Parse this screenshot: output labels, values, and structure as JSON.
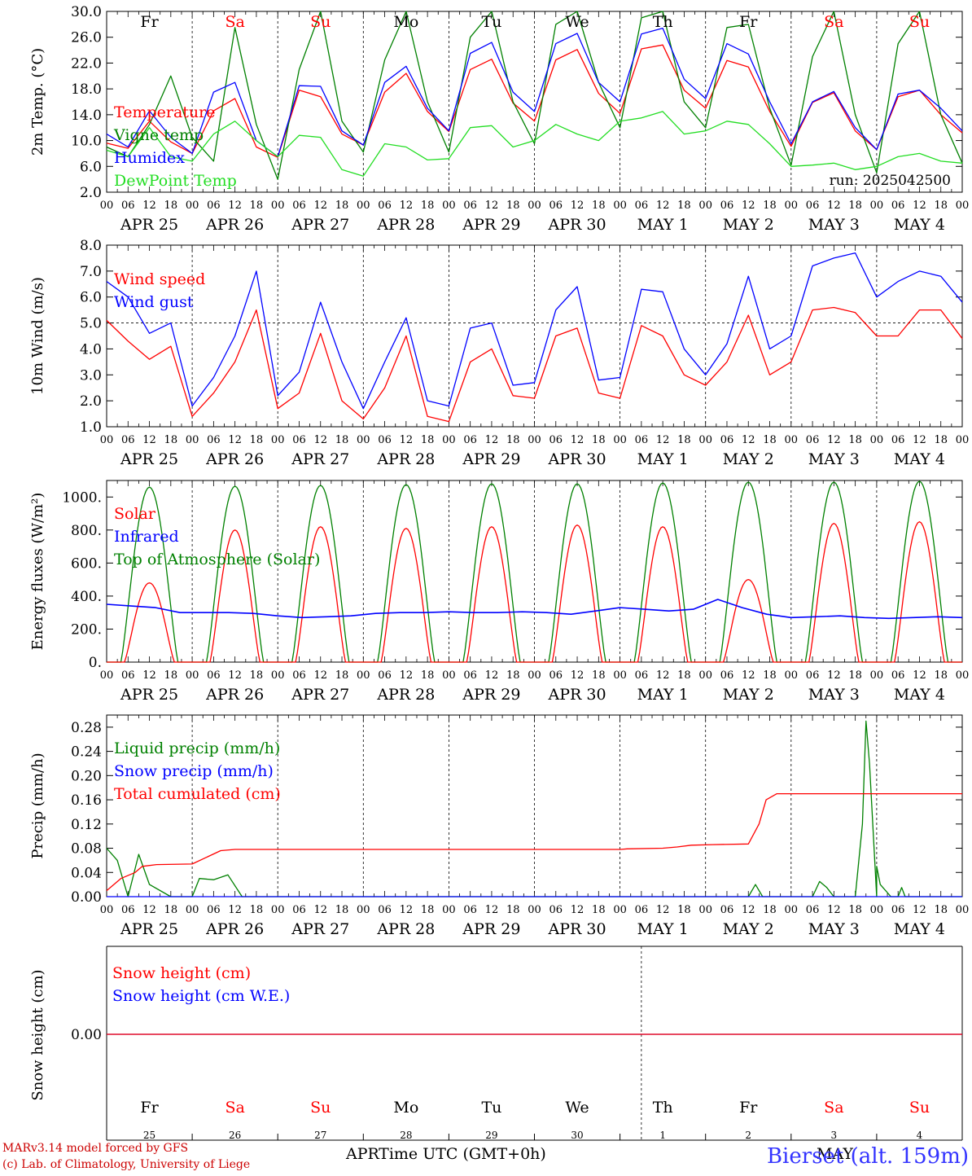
{
  "chart_data": [
    {
      "type": "line",
      "ylabel": "2m Temp. (°C)",
      "ylim": [
        2,
        30
      ],
      "yticks": [
        "2.0",
        "6.0",
        "10.0",
        "14.0",
        "18.0",
        "22.0",
        "26.0",
        "30.0"
      ],
      "x_hours": [
        0,
        6,
        12,
        18,
        24,
        30,
        36,
        42,
        48,
        54,
        60,
        66,
        72,
        78,
        84,
        90,
        96,
        102,
        108,
        114,
        120,
        126,
        132,
        138,
        144,
        150,
        156,
        162,
        168,
        174,
        180,
        186,
        192,
        198,
        204,
        210,
        216,
        222,
        228,
        234,
        240
      ],
      "series": [
        {
          "name": "Temperature",
          "color": "#ff0000",
          "values": [
            9.6,
            8.8,
            13.0,
            9.8,
            8.0,
            14.6,
            16.5,
            9.0,
            7.4,
            17.8,
            16.8,
            11.0,
            9.3,
            17.5,
            20.4,
            14.5,
            11.4,
            21.0,
            22.6,
            15.8,
            13.0,
            22.5,
            24.1,
            17.3,
            14.2,
            24.2,
            24.8,
            17.8,
            15.0,
            22.4,
            21.4,
            14.5,
            9.1,
            15.9,
            17.4,
            11.5,
            8.6,
            16.8,
            17.8,
            14.0,
            11.2
          ]
        },
        {
          "name": "Vigne temp",
          "color": "#008000",
          "values": [
            9.0,
            7.5,
            12.5,
            20.0,
            10.5,
            6.8,
            27.5,
            12.5,
            4.0,
            21.0,
            30.0,
            13.0,
            8.2,
            22.5,
            30.0,
            16.0,
            8.2,
            26.0,
            30.0,
            16.0,
            9.5,
            28.0,
            30.0,
            19.0,
            12.0,
            29.0,
            30.0,
            16.0,
            12.0,
            27.5,
            28.0,
            15.0,
            6.2,
            23.0,
            30.0,
            14.0,
            5.0,
            25.0,
            30.0,
            14.0,
            6.5
          ]
        },
        {
          "name": "Humidex",
          "color": "#0000ff",
          "values": [
            11.0,
            9.0,
            14.6,
            10.5,
            8.0,
            17.5,
            19.0,
            10.0,
            7.5,
            18.5,
            18.4,
            11.5,
            9.3,
            19.0,
            21.5,
            15.0,
            11.5,
            23.5,
            25.2,
            17.5,
            14.5,
            25.0,
            26.6,
            19.0,
            16.0,
            26.5,
            27.4,
            19.5,
            16.5,
            25.0,
            23.4,
            16.0,
            9.5,
            16.0,
            17.6,
            12.0,
            8.6,
            17.2,
            17.8,
            15.0,
            11.5
          ]
        },
        {
          "name": "DewPoint Temp",
          "color": "#22dd22",
          "values": [
            8.5,
            7.5,
            12.0,
            7.5,
            6.8,
            11.0,
            13.0,
            10.0,
            7.5,
            10.8,
            10.5,
            5.5,
            4.5,
            9.5,
            9.0,
            7.0,
            7.2,
            12.0,
            12.3,
            9.0,
            10.0,
            12.5,
            11.0,
            10.0,
            13.0,
            13.5,
            14.5,
            11.0,
            11.5,
            13.0,
            12.5,
            9.5,
            6.0,
            6.2,
            6.5,
            5.5,
            6.0,
            7.5,
            8.0,
            6.8,
            6.5
          ]
        }
      ],
      "legend_placement": "left"
    },
    {
      "type": "line",
      "ylabel": "10m Wind (m/s)",
      "ylim": [
        1,
        8
      ],
      "yticks": [
        "1.0",
        "2.0",
        "3.0",
        "4.0",
        "5.0",
        "6.0",
        "7.0",
        "8.0"
      ],
      "reference_line": 5.0,
      "x_hours": [
        0,
        6,
        12,
        18,
        24,
        30,
        36,
        42,
        48,
        54,
        60,
        66,
        72,
        78,
        84,
        90,
        96,
        102,
        108,
        114,
        120,
        126,
        132,
        138,
        144,
        150,
        156,
        162,
        168,
        174,
        180,
        186,
        192,
        198,
        204,
        210,
        216,
        222,
        228,
        234,
        240
      ],
      "series": [
        {
          "name": "Wind speed",
          "color": "#ff0000",
          "values": [
            5.1,
            4.3,
            3.6,
            4.1,
            1.4,
            2.3,
            3.5,
            5.5,
            1.7,
            2.3,
            4.6,
            2.0,
            1.3,
            2.5,
            4.5,
            1.4,
            1.2,
            3.5,
            4.0,
            2.2,
            2.1,
            4.5,
            4.8,
            2.3,
            2.1,
            4.9,
            4.5,
            3.0,
            2.6,
            3.5,
            5.3,
            3.0,
            3.5,
            5.5,
            5.6,
            5.4,
            4.5,
            4.5,
            5.5,
            5.5,
            4.4
          ]
        },
        {
          "name": "Wind gust",
          "color": "#0000ff",
          "values": [
            6.6,
            6.0,
            4.6,
            5.0,
            1.8,
            2.9,
            4.5,
            7.0,
            2.2,
            3.1,
            5.8,
            3.5,
            1.7,
            3.5,
            5.2,
            2.0,
            1.8,
            4.8,
            5.0,
            2.6,
            2.7,
            5.5,
            6.4,
            2.8,
            2.9,
            6.3,
            6.2,
            4.0,
            3.0,
            4.2,
            6.8,
            4.0,
            4.5,
            7.2,
            7.5,
            7.7,
            6.0,
            6.6,
            7.0,
            6.8,
            5.8
          ]
        }
      ],
      "legend_placement": "left"
    },
    {
      "type": "line",
      "ylabel": "Energy fluxes (W/m²)",
      "ylim": [
        0,
        1100
      ],
      "yticks": [
        "0.",
        "200.",
        "400.",
        "600.",
        "800.",
        "1000."
      ],
      "peaks": {
        "solar": [
          480,
          800,
          820,
          810,
          820,
          830,
          820,
          500,
          840,
          850
        ],
        "top_of_atmosphere": [
          1060,
          1065,
          1070,
          1075,
          1080,
          1080,
          1085,
          1090,
          1090,
          1095
        ]
      },
      "infrared_series": [
        350,
        340,
        330,
        300,
        300,
        300,
        295,
        280,
        270,
        275,
        280,
        295,
        300,
        300,
        305,
        300,
        300,
        305,
        300,
        290,
        310,
        330,
        320,
        310,
        320,
        380,
        330,
        290,
        270,
        275,
        280,
        270,
        265,
        270,
        275,
        270
      ],
      "series_names": [
        "Solar",
        "Infrared",
        "Top of Atmosphere (Solar)"
      ],
      "series_colors": [
        "#ff0000",
        "#0000ff",
        "#008000"
      ],
      "legend_placement": "left"
    },
    {
      "type": "line",
      "ylabel": "Precip (mm/h)",
      "ylim": [
        0,
        0.3
      ],
      "yticks": [
        "0.00",
        "0.04",
        "0.08",
        "0.12",
        "0.16",
        "0.20",
        "0.24",
        "0.28"
      ],
      "series": [
        {
          "name": "Liquid precip (mm/h)",
          "color": "#008000",
          "points": [
            [
              0,
              0.08
            ],
            [
              3,
              0.06
            ],
            [
              6,
              0.0
            ],
            [
              9,
              0.07
            ],
            [
              12,
              0.02
            ],
            [
              18,
              0.0
            ],
            [
              24,
              0.0
            ],
            [
              26,
              0.03
            ],
            [
              30,
              0.028
            ],
            [
              34,
              0.036
            ],
            [
              38,
              0.0
            ],
            [
              48,
              0.0
            ],
            [
              180,
              0.0
            ],
            [
              182,
              0.02
            ],
            [
              184,
              0.0
            ],
            [
              222,
              0.0
            ],
            [
              223,
              0.015
            ],
            [
              224,
              0.0
            ],
            [
              216,
              0.0
            ],
            [
              198,
              0.0
            ],
            [
              200,
              0.025
            ],
            [
              202,
              0.015
            ],
            [
              204,
              0.0
            ],
            [
              210,
              0.0
            ],
            [
              212,
              0.12
            ],
            [
              213,
              0.29
            ],
            [
              214,
              0.22
            ],
            [
              216,
              0.05
            ],
            [
              217,
              0.02
            ],
            [
              220,
              0.0
            ],
            [
              240,
              0.0
            ]
          ]
        },
        {
          "name": "Snow precip (mm/h)",
          "color": "#0000ff",
          "points": [
            [
              0,
              0.0
            ],
            [
              240,
              0.0
            ]
          ]
        },
        {
          "name": "Total cumulated (cm)",
          "color": "#ff0000",
          "points": [
            [
              0,
              0.01
            ],
            [
              4,
              0.03
            ],
            [
              8,
              0.04
            ],
            [
              10,
              0.05
            ],
            [
              14,
              0.053
            ],
            [
              24,
              0.054
            ],
            [
              28,
              0.065
            ],
            [
              32,
              0.076
            ],
            [
              36,
              0.078
            ],
            [
              144,
              0.078
            ],
            [
              146,
              0.079
            ],
            [
              156,
              0.08
            ],
            [
              160,
              0.082
            ],
            [
              164,
              0.085
            ],
            [
              170,
              0.086
            ],
            [
              180,
              0.087
            ],
            [
              183,
              0.12
            ],
            [
              185,
              0.16
            ],
            [
              188,
              0.17
            ],
            [
              240,
              0.17
            ]
          ]
        }
      ],
      "legend_placement": "left"
    },
    {
      "type": "line",
      "ylabel": "Snow height (cm)",
      "yticks": [
        "0.00"
      ],
      "series": [
        {
          "name": "Snow height (cm)",
          "color": "#ff0000",
          "values": [
            0,
            0
          ]
        },
        {
          "name": "Snow height (cm W.E.)",
          "color": "#0000ff",
          "values": [
            0,
            0
          ]
        }
      ],
      "legend_placement": "left"
    }
  ],
  "axis": {
    "hour_ticks": [
      "00",
      "06",
      "12",
      "18"
    ],
    "end_tick": "00",
    "date_labels": [
      "APR 25",
      "APR 26",
      "APR 27",
      "APR 28",
      "APR 29",
      "APR 30",
      "MAY  1",
      "MAY  2",
      "MAY  3",
      "MAY  4"
    ],
    "weekdays": [
      "Fr",
      "Sa",
      "Su",
      "Mo",
      "Tu",
      "We",
      "Th",
      "Fr",
      "Sa",
      "Su"
    ],
    "weekday_colors": [
      "#000000",
      "#ff0000",
      "#ff0000",
      "#000000",
      "#000000",
      "#000000",
      "#000000",
      "#000000",
      "#ff0000",
      "#ff0000"
    ],
    "day_numbers": [
      "25",
      "26",
      "27",
      "28",
      "29",
      "30",
      "1",
      "2",
      "3",
      "4"
    ],
    "month_left": "APR",
    "month_right": "MAY",
    "xlabel": "Time UTC (GMT+0h)"
  },
  "footer": {
    "run": "run: 2025042500",
    "credit_line1": "MARv3.14 model forced by GFS",
    "credit_line2": "(c) Lab. of Climatology, University of Liege",
    "station": "Bierset (alt. 159m)"
  },
  "colors": {
    "temperature": "#ff0000",
    "vigne": "#008000",
    "humidex": "#0000ff",
    "dewpoint": "#22dd22",
    "weekend": "#ff0000",
    "station": "#3333ff"
  }
}
